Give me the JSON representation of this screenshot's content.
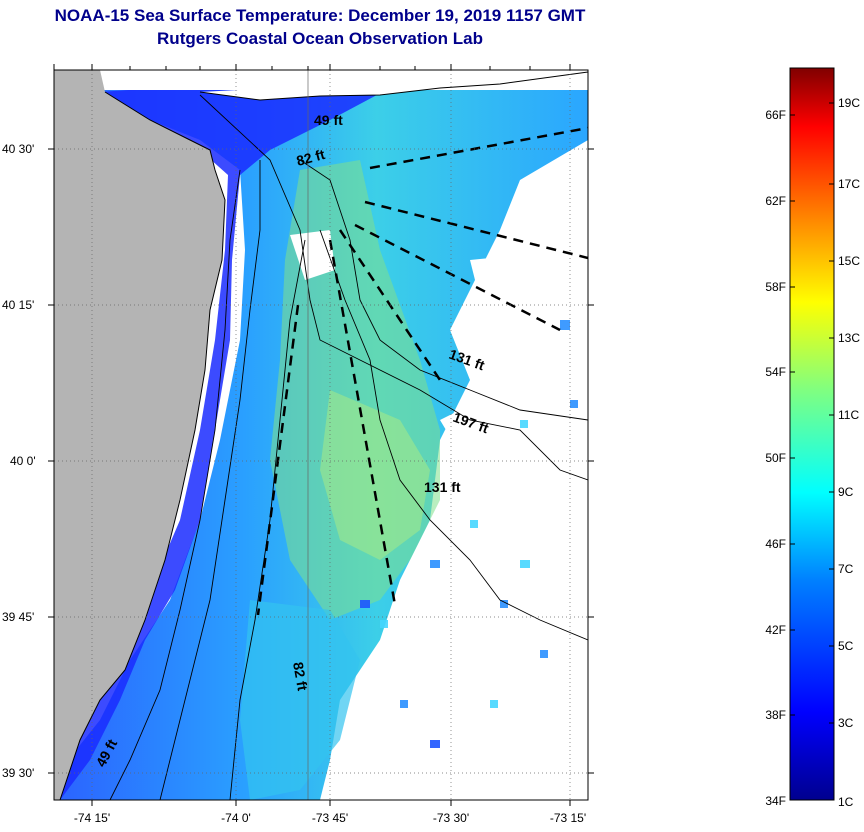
{
  "title": "NOAA-15 Sea Surface Temperature:  December 19, 2019 1157 GMT",
  "subtitle": "Rutgers Coastal Ocean Observation Lab",
  "map": {
    "lat_labels": [
      "40 30'",
      "40 15'",
      "40 0'",
      "39 45'",
      "39 30'"
    ],
    "lon_labels": [
      "-74 15'",
      "-74 0'",
      "-73 45'",
      "-73 30'",
      "-73 15'"
    ],
    "lat_values": [
      40.5,
      40.25,
      40.0,
      39.75,
      39.5
    ],
    "lon_values": [
      -74.25,
      -74.0,
      -73.75,
      -73.5,
      -73.25
    ],
    "depth_labels": [
      "49 ft",
      "82 ft",
      "131 ft",
      "197 ft",
      "131 ft",
      "82 ft",
      "49 ft"
    ],
    "colors": {
      "land": "#b4b4b4",
      "cloud": "#ffffff",
      "contour": "#000000",
      "title": "#00008b"
    }
  },
  "colorbar": {
    "fahrenheit_labels": [
      "66F",
      "62F",
      "58F",
      "54F",
      "50F",
      "46F",
      "42F",
      "38F",
      "34F"
    ],
    "celsius_labels": [
      "19C",
      "17C",
      "15C",
      "13C",
      "11C",
      "9C",
      "7C",
      "5C",
      "3C",
      "1C"
    ],
    "min_c": 1,
    "max_c": 20,
    "gradient": [
      "#00008f",
      "#0000ff",
      "#0080ff",
      "#00ffff",
      "#80ff80",
      "#ffff00",
      "#ff8000",
      "#ff0000",
      "#800000"
    ]
  }
}
